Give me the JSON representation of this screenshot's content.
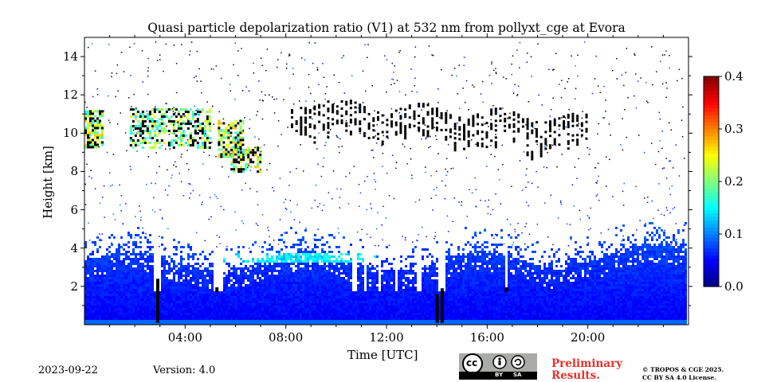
{
  "chart_data": {
    "type": "heatmap",
    "title": "Quasi particle depolarization ratio (V1) at 532 nm from pollyxt_cge at Evora",
    "xlabel": "Time [UTC]",
    "ylabel": "Height [km]",
    "xlim": [
      0,
      24
    ],
    "ylim": [
      0,
      15
    ],
    "x_ticks": [
      4,
      8,
      12,
      16,
      20
    ],
    "x_tick_labels": [
      "04:00",
      "08:00",
      "12:00",
      "16:00",
      "20:00"
    ],
    "y_ticks": [
      2,
      4,
      6,
      8,
      10,
      12,
      14
    ],
    "y_tick_labels": [
      "2",
      "4",
      "6",
      "8",
      "10",
      "12",
      "14"
    ],
    "data_end_hour": 23.9,
    "colorbar": {
      "min": 0.0,
      "max": 0.4,
      "ticks": [
        0.0,
        0.1,
        0.2,
        0.3,
        0.4
      ],
      "tick_labels": [
        "0.0",
        "0.1",
        "0.2",
        "0.3",
        "0.4"
      ],
      "colormap": "jet"
    },
    "regions": [
      {
        "name": "boundary-layer aerosol",
        "t": [
          0,
          23.9
        ],
        "h": [
          0,
          3.8
        ],
        "value": 0.04
      },
      {
        "name": "elevated aerosol layer",
        "t": [
          5.5,
          11.5
        ],
        "h": [
          3.4,
          3.8
        ],
        "value": 0.12
      },
      {
        "name": "cirrus early",
        "t": [
          0,
          0.7
        ],
        "h": [
          9.3,
          11.2
        ],
        "value": 0.22
      },
      {
        "name": "cirrus morning",
        "t": [
          1.8,
          5.0
        ],
        "h": [
          9.2,
          11.3
        ],
        "value": 0.2
      },
      {
        "name": "cirrus descending",
        "t": [
          5.3,
          7.0
        ],
        "h": [
          8.0,
          10.7
        ],
        "value": 0.22
      },
      {
        "name": "upper cloud",
        "t": [
          8.2,
          20.0
        ],
        "h": [
          9.5,
          12.5
        ],
        "value": "saturated"
      }
    ],
    "footer": {
      "date": "2023-09-22",
      "version": "Version: 4.0",
      "license_badge": {
        "cc": "cc",
        "by": "BY",
        "sa": "SA"
      },
      "preliminary": [
        "Preliminary",
        "Results."
      ],
      "copyright": [
        "© TROPOS & CGE 2025.",
        "CC BY SA 4.0 License."
      ]
    }
  }
}
